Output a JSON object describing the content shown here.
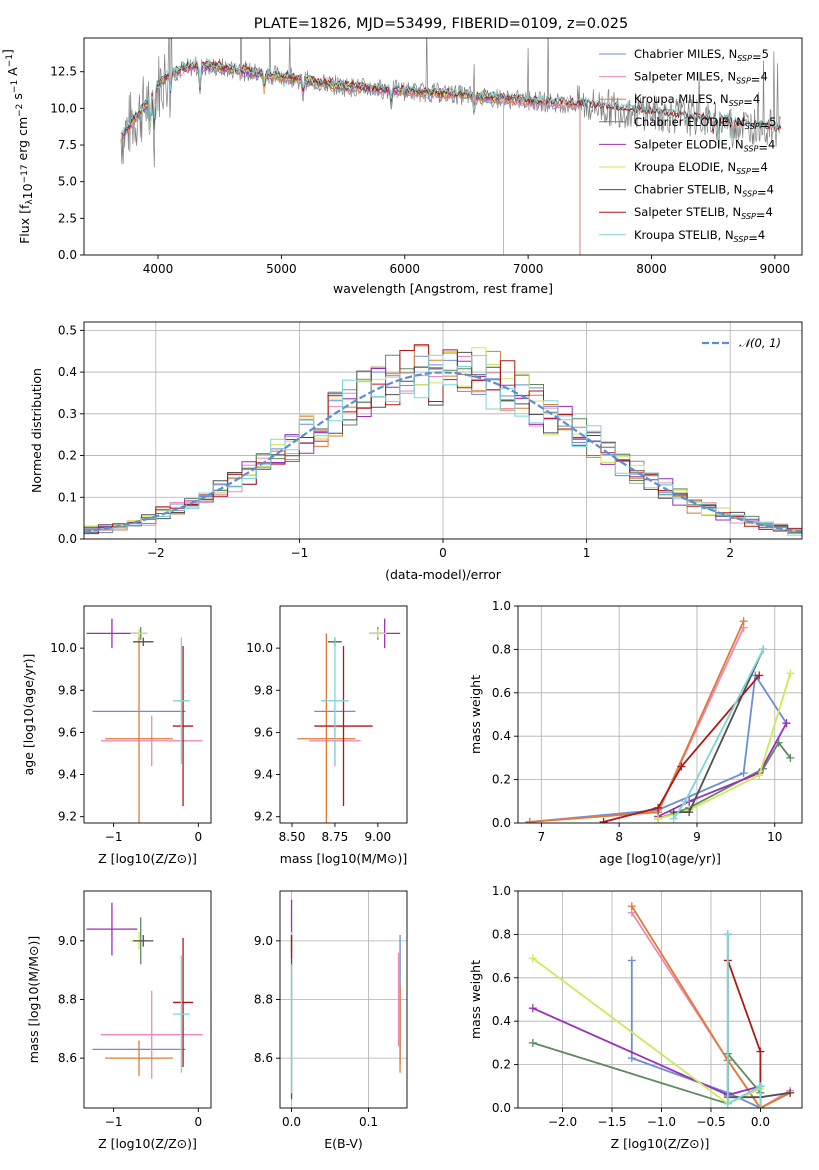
{
  "figure": {
    "title": "PLATE=1826, MJD=53499, FIBERID=0109, z=0.025"
  },
  "colors": {
    "Chabrier MILES": "#6a8fd8",
    "Salpeter MILES": "#ee88bb",
    "Kroupa MILES": "#e07b33",
    "Chabrier ELODIE": "#5c8a60",
    "Salpeter ELODIE": "#9a2fb8",
    "Kroupa ELODIE": "#cfe85a",
    "Chabrier STELIB": "#505050",
    "Salpeter STELIB": "#b01818",
    "Kroupa STELIB": "#7dd6d8",
    "data": "#808080",
    "normal": "#5a8fd6"
  },
  "chart_data": [
    {
      "id": "spectrum",
      "type": "line",
      "title": "PLATE=1826, MJD=53499, FIBERID=0109, z=0.025",
      "xlabel": "wavelength [Angstrom, rest frame]",
      "ylabel": "Flux [f",
      "ylabel_parts": [
        "Flux [f",
        "λ",
        "10",
        "−17",
        " erg cm",
        "−2",
        " s",
        "−1",
        " A",
        "−1",
        "]"
      ],
      "xlim": [
        3400,
        9220
      ],
      "ylim": [
        0,
        14.8
      ],
      "xticks": [
        4000,
        5000,
        6000,
        7000,
        8000,
        9000
      ],
      "yticks": [
        0.0,
        2.5,
        5.0,
        7.5,
        10.0,
        12.5
      ],
      "xtick_labels": [
        "4000",
        "5000",
        "6000",
        "7000",
        "8000",
        "9000"
      ],
      "ytick_labels": [
        "0.0",
        "2.5",
        "5.0",
        "7.5",
        "10.0",
        "12.5"
      ],
      "continuum": {
        "x": [
          3700,
          3800,
          3900,
          4000,
          4100,
          4300,
          4500,
          4800,
          5000,
          5200,
          5500,
          6000,
          6500,
          7000,
          7400,
          7800,
          8200,
          8600,
          9000
        ],
        "y": [
          8.0,
          9.2,
          10.2,
          11.6,
          12.4,
          12.9,
          12.8,
          12.4,
          12.2,
          11.9,
          11.5,
          11.2,
          10.9,
          10.5,
          10.3,
          9.9,
          9.5,
          9.1,
          8.6
        ]
      },
      "legend": [
        {
          "name": "Chabrier MILES",
          "nssp": "5"
        },
        {
          "name": "Salpeter MILES",
          "nssp": "4"
        },
        {
          "name": "Kroupa MILES",
          "nssp": "4"
        },
        {
          "name": "Chabrier ELODIE",
          "nssp": "5"
        },
        {
          "name": "Salpeter ELODIE",
          "nssp": "4"
        },
        {
          "name": "Kroupa ELODIE",
          "nssp": "4"
        },
        {
          "name": "Chabrier STELIB",
          "nssp": "4"
        },
        {
          "name": "Salpeter STELIB",
          "nssp": "4"
        },
        {
          "name": "Kroupa STELIB",
          "nssp": "4"
        }
      ],
      "legend_prefix": "N",
      "legend_sub": "SSP",
      "legend_placement": "upper right"
    },
    {
      "id": "residuals",
      "type": "line",
      "xlabel": "(data-model)/error",
      "ylabel": "Normed distribution",
      "xlim": [
        -2.5,
        2.5
      ],
      "ylim": [
        0,
        0.52
      ],
      "xticks": [
        -2,
        -1,
        0,
        1,
        2
      ],
      "yticks": [
        0.0,
        0.1,
        0.2,
        0.3,
        0.4,
        0.5
      ],
      "xtick_labels": [
        "−2",
        "−1",
        "0",
        "1",
        "2"
      ],
      "ytick_labels": [
        "0.0",
        "0.1",
        "0.2",
        "0.3",
        "0.4",
        "0.5"
      ],
      "bin_width": 0.1,
      "legend": [
        {
          "name": "𝒩(0, 1)"
        }
      ],
      "legend_placement": "upper right",
      "grid": true
    },
    {
      "id": "age_vs_Z",
      "type": "scatter",
      "xlabel": "Z [log10(Z/Z⊙)]",
      "ylabel": "age  [log10(age/yr)]",
      "xlim": [
        -1.35,
        0.15
      ],
      "ylim": [
        9.17,
        10.2
      ],
      "xticks": [
        -1,
        0
      ],
      "yticks": [
        9.2,
        9.4,
        9.6,
        9.8,
        10.0
      ],
      "xtick_labels": [
        "−1",
        "0"
      ],
      "ytick_labels": [
        "9.2",
        "9.4",
        "9.6",
        "9.8",
        "10.0"
      ],
      "points": [
        {
          "model": "Chabrier MILES",
          "x": -0.7,
          "xerr": 0.55,
          "y": 9.7,
          "yerr": 0.0
        },
        {
          "model": "Salpeter MILES",
          "x": -0.55,
          "xerr": 0.6,
          "y": 9.56,
          "yerr": 0.12
        },
        {
          "model": "Kroupa MILES",
          "x": -0.7,
          "xerr": 0.4,
          "y": 9.57,
          "yerr": 0.5
        },
        {
          "model": "Chabrier ELODIE",
          "x": -0.68,
          "xerr": 0.08,
          "y": 10.07,
          "yerr": 0.03
        },
        {
          "model": "Salpeter ELODIE",
          "x": -1.02,
          "xerr": 0.3,
          "y": 10.07,
          "yerr": 0.07
        },
        {
          "model": "Kroupa ELODIE",
          "x": -0.7,
          "xerr": 0.1,
          "y": 10.07,
          "yerr": 0.02
        },
        {
          "model": "Chabrier STELIB",
          "x": -0.65,
          "xerr": 0.12,
          "y": 10.03,
          "yerr": 0.02
        },
        {
          "model": "Salpeter STELIB",
          "x": -0.18,
          "xerr": 0.12,
          "y": 9.63,
          "yerr": 0.38
        },
        {
          "model": "Kroupa STELIB",
          "x": -0.2,
          "xerr": 0.1,
          "y": 9.75,
          "yerr": 0.3
        }
      ]
    },
    {
      "id": "age_vs_mass",
      "type": "scatter",
      "xlabel": "mass [log10(M/M⊙)]",
      "ylabel": "",
      "xlim": [
        8.43,
        9.17
      ],
      "ylim": [
        9.17,
        10.2
      ],
      "xticks": [
        8.5,
        8.75,
        9.0
      ],
      "yticks": [
        9.2,
        9.4,
        9.6,
        9.8,
        10.0
      ],
      "xtick_labels": [
        "8.50",
        "8.75",
        "9.00"
      ],
      "ytick_labels": [
        "9.2",
        "9.4",
        "9.6",
        "9.8",
        "10.0"
      ],
      "points": [
        {
          "model": "Chabrier MILES",
          "x": 8.75,
          "xerr": 0.12,
          "y": 9.7,
          "yerr": 0.0
        },
        {
          "model": "Salpeter MILES",
          "x": 8.75,
          "xerr": 0.15,
          "y": 9.56,
          "yerr": 0.12
        },
        {
          "model": "Kroupa MILES",
          "x": 8.7,
          "xerr": 0.17,
          "y": 9.57,
          "yerr": 0.5
        },
        {
          "model": "Chabrier ELODIE",
          "x": 9.0,
          "xerr": 0.04,
          "y": 10.07,
          "yerr": 0.03
        },
        {
          "model": "Salpeter ELODIE",
          "x": 9.04,
          "xerr": 0.09,
          "y": 10.07,
          "yerr": 0.07
        },
        {
          "model": "Kroupa ELODIE",
          "x": 9.0,
          "xerr": 0.05,
          "y": 10.07,
          "yerr": 0.02
        },
        {
          "model": "Chabrier STELIB",
          "x": 8.75,
          "xerr": 0.04,
          "y": 10.03,
          "yerr": 0.02
        },
        {
          "model": "Salpeter STELIB",
          "x": 8.8,
          "xerr": 0.17,
          "y": 9.63,
          "yerr": 0.38
        },
        {
          "model": "Kroupa STELIB",
          "x": 8.75,
          "xerr": 0.08,
          "y": 9.75,
          "yerr": 0.3
        }
      ]
    },
    {
      "id": "weight_vs_age",
      "type": "line",
      "xlabel": "age  [log10(age/yr)]",
      "ylabel": "mass weight",
      "xlim": [
        6.7,
        10.35
      ],
      "ylim": [
        0,
        1.0
      ],
      "xticks": [
        7,
        8,
        9,
        10
      ],
      "yticks": [
        0.0,
        0.2,
        0.4,
        0.6,
        0.8,
        1.0
      ],
      "xtick_labels": [
        "7",
        "8",
        "9",
        "10"
      ],
      "ytick_labels": [
        "0.0",
        "0.2",
        "0.4",
        "0.6",
        "0.8",
        "1.0"
      ],
      "grid": true,
      "series": [
        {
          "name": "Chabrier MILES",
          "x": [
            6.85,
            8.5,
            9.6,
            9.75,
            10.15
          ],
          "y": [
            0.005,
            0.06,
            0.23,
            0.68,
            0.46
          ]
        },
        {
          "name": "Salpeter MILES",
          "x": [
            6.85,
            8.5,
            9.6
          ],
          "y": [
            0.005,
            0.05,
            0.9
          ]
        },
        {
          "name": "Kroupa MILES",
          "x": [
            6.85,
            8.5,
            9.6
          ],
          "y": [
            0.005,
            0.05,
            0.93
          ]
        },
        {
          "name": "Chabrier ELODIE",
          "x": [
            8.5,
            8.9,
            9.85,
            10.05,
            10.2
          ],
          "y": [
            0.02,
            0.07,
            0.25,
            0.37,
            0.3
          ]
        },
        {
          "name": "Salpeter ELODIE",
          "x": [
            8.5,
            8.9,
            9.8,
            10.15
          ],
          "y": [
            0.03,
            0.1,
            0.23,
            0.46
          ]
        },
        {
          "name": "Kroupa ELODIE",
          "x": [
            8.5,
            8.9,
            9.8,
            10.2
          ],
          "y": [
            0.02,
            0.06,
            0.22,
            0.69
          ]
        },
        {
          "name": "Chabrier STELIB",
          "x": [
            8.7,
            8.9,
            9.85
          ],
          "y": [
            0.05,
            0.05,
            0.8
          ]
        },
        {
          "name": "Salpeter STELIB",
          "x": [
            7.8,
            8.5,
            8.8,
            9.8
          ],
          "y": [
            0.005,
            0.07,
            0.26,
            0.68
          ]
        },
        {
          "name": "Kroupa STELIB",
          "x": [
            8.7,
            8.85,
            9.85
          ],
          "y": [
            0.02,
            0.1,
            0.8
          ]
        }
      ]
    },
    {
      "id": "mass_vs_Z",
      "type": "scatter",
      "xlabel": "Z [log10(Z/Z⊙)]",
      "ylabel": "mass [log10(M/M⊙)]",
      "xlim": [
        -1.35,
        0.15
      ],
      "ylim": [
        8.43,
        9.17
      ],
      "xticks": [
        -1,
        0
      ],
      "yticks": [
        8.6,
        8.8,
        9.0
      ],
      "xtick_labels": [
        "−1",
        "0"
      ],
      "ytick_labels": [
        "8.6",
        "8.8",
        "9.0"
      ],
      "points": [
        {
          "model": "Chabrier MILES",
          "x": -0.7,
          "xerr": 0.55,
          "y": 8.63,
          "yerr": 0.0
        },
        {
          "model": "Salpeter MILES",
          "x": -0.55,
          "xerr": 0.6,
          "y": 8.68,
          "yerr": 0.15
        },
        {
          "model": "Kroupa MILES",
          "x": -0.7,
          "xerr": 0.4,
          "y": 8.6,
          "yerr": 0.06
        },
        {
          "model": "Chabrier ELODIE",
          "x": -0.68,
          "xerr": 0.08,
          "y": 9.0,
          "yerr": 0.08
        },
        {
          "model": "Salpeter ELODIE",
          "x": -1.02,
          "xerr": 0.3,
          "y": 9.04,
          "yerr": 0.09
        },
        {
          "model": "Kroupa ELODIE",
          "x": -0.7,
          "xerr": 0.1,
          "y": 9.0,
          "yerr": 0.03
        },
        {
          "model": "Chabrier STELIB",
          "x": -0.65,
          "xerr": 0.12,
          "y": 9.0,
          "yerr": 0.02
        },
        {
          "model": "Salpeter STELIB",
          "x": -0.18,
          "xerr": 0.12,
          "y": 8.79,
          "yerr": 0.22
        },
        {
          "model": "Kroupa STELIB",
          "x": -0.2,
          "xerr": 0.1,
          "y": 8.75,
          "yerr": 0.2
        }
      ]
    },
    {
      "id": "mass_vs_ebv",
      "type": "scatter",
      "xlabel": "E(B-V)",
      "ylabel": "",
      "xlim": [
        -0.015,
        0.15
      ],
      "ylim": [
        8.43,
        9.17
      ],
      "xticks": [
        0.0,
        0.1
      ],
      "yticks": [
        8.6,
        8.8,
        9.0
      ],
      "xtick_labels": [
        "0.0",
        "0.1"
      ],
      "ytick_labels": [
        "8.6",
        "8.8",
        "9.0"
      ],
      "points": [
        {
          "model": "Chabrier MILES",
          "x": 0.141,
          "xerr": 0.0,
          "y": 8.8,
          "yerr": 0.22
        },
        {
          "model": "Salpeter MILES",
          "x": 0.139,
          "xerr": 0.0,
          "y": 8.8,
          "yerr": 0.16
        },
        {
          "model": "Kroupa MILES",
          "x": 0.141,
          "xerr": 0.0,
          "y": 8.7,
          "yerr": 0.15
        },
        {
          "model": "Chabrier ELODIE",
          "x": 0.0,
          "xerr": 0.0,
          "y": 9.0,
          "yerr": 0.03
        },
        {
          "model": "Salpeter ELODIE",
          "x": 0.0,
          "xerr": 0.0,
          "y": 9.04,
          "yerr": 0.1
        },
        {
          "model": "Kroupa ELODIE",
          "x": 0.0,
          "xerr": 0.0,
          "y": 9.0,
          "yerr": 0.03
        },
        {
          "model": "Chabrier STELIB",
          "x": 0.0,
          "xerr": 0.0,
          "y": 8.7,
          "yerr": 0.24
        },
        {
          "model": "Salpeter STELIB",
          "x": 0.0,
          "xerr": 0.0,
          "y": 8.98,
          "yerr": 0.04
        },
        {
          "model": "Kroupa STELIB",
          "x": 0.0,
          "xerr": 0.0,
          "y": 8.7,
          "yerr": 0.22
        }
      ]
    },
    {
      "id": "weight_vs_Z",
      "type": "line",
      "xlabel": "Z [log10(Z/Z⊙)]",
      "ylabel": "mass weight",
      "xlim": [
        -2.45,
        0.42
      ],
      "ylim": [
        0,
        1.0
      ],
      "xticks": [
        -2.0,
        -1.5,
        -1.0,
        -0.5,
        0.0
      ],
      "yticks": [
        0.0,
        0.2,
        0.4,
        0.6,
        0.8,
        1.0
      ],
      "xtick_labels": [
        "−2.0",
        "−1.5",
        "−1.0",
        "−0.5",
        "0.0"
      ],
      "ytick_labels": [
        "0.0",
        "0.2",
        "0.4",
        "0.6",
        "0.8",
        "1.0"
      ],
      "grid": true,
      "series": [
        {
          "name": "Chabrier MILES",
          "x": [
            -1.3,
            -1.3,
            -0.33,
            0.0,
            0.3
          ],
          "y": [
            0.68,
            0.23,
            0.07,
            0.0,
            0.07
          ]
        },
        {
          "name": "Salpeter MILES",
          "x": [
            -1.3,
            -0.33,
            0.0,
            0.3
          ],
          "y": [
            0.9,
            0.22,
            0.0,
            0.08
          ]
        },
        {
          "name": "Kroupa MILES",
          "x": [
            -1.3,
            -0.33,
            0.0,
            0.3
          ],
          "y": [
            0.93,
            0.22,
            0.0,
            0.07
          ]
        },
        {
          "name": "Chabrier ELODIE",
          "x": [
            -2.3,
            -0.33,
            -0.33,
            0.0
          ],
          "y": [
            0.3,
            0.02,
            0.25,
            0.07
          ]
        },
        {
          "name": "Salpeter ELODIE",
          "x": [
            -2.3,
            -0.33,
            0.0
          ],
          "y": [
            0.46,
            0.06,
            0.1
          ]
        },
        {
          "name": "Kroupa ELODIE",
          "x": [
            -2.3,
            -0.33,
            0.0
          ],
          "y": [
            0.69,
            0.02,
            0.09
          ]
        },
        {
          "name": "Chabrier STELIB",
          "x": [
            -0.33,
            -0.33,
            0.0,
            0.3
          ],
          "y": [
            0.8,
            0.05,
            0.05,
            0.07
          ]
        },
        {
          "name": "Salpeter STELIB",
          "x": [
            -0.33,
            0.0,
            0.0
          ],
          "y": [
            0.68,
            0.26,
            0.0
          ]
        },
        {
          "name": "Kroupa STELIB",
          "x": [
            -0.33,
            -0.33,
            0.0,
            0.0
          ],
          "y": [
            0.8,
            0.02,
            0.1,
            0.0
          ]
        }
      ]
    }
  ]
}
